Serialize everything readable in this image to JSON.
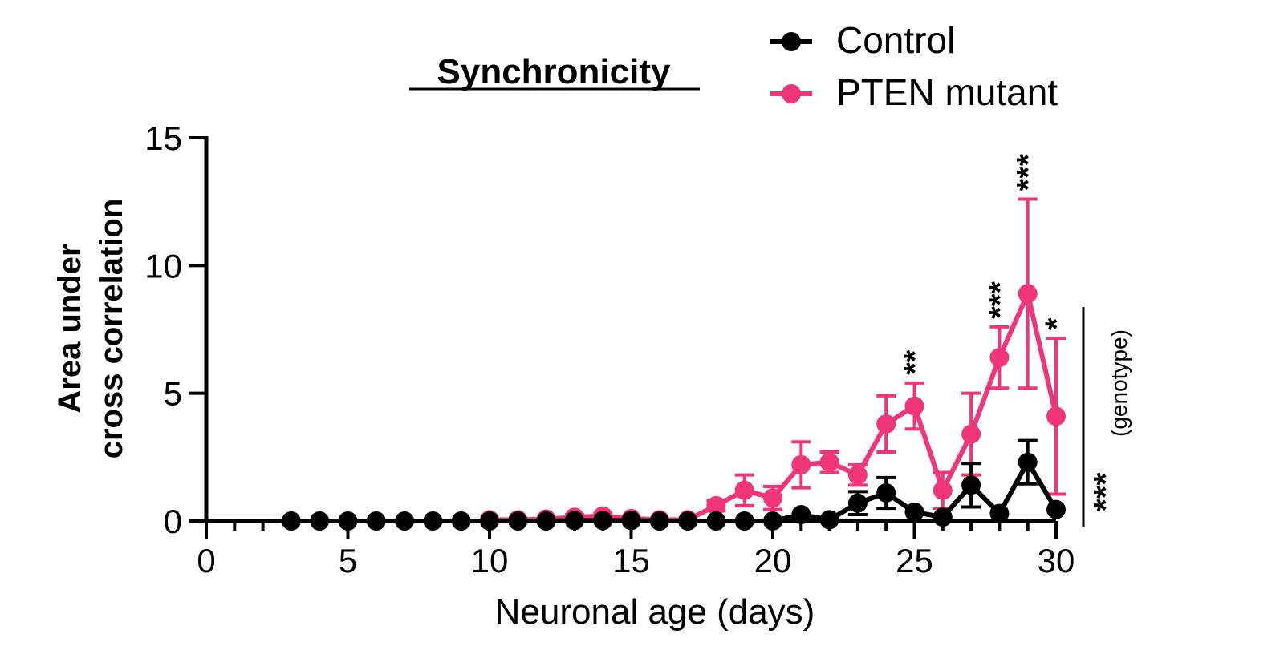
{
  "chart_data": {
    "type": "line",
    "title": "Synchronicity",
    "xlabel": "Neuronal age (days)",
    "ylabel_line1": "Area under",
    "ylabel_line2": "cross correlation",
    "xlim": [
      0,
      30
    ],
    "ylim": [
      0,
      15
    ],
    "xticks": [
      0,
      5,
      10,
      15,
      20,
      25,
      30
    ],
    "yticks": [
      0,
      5,
      10,
      15
    ],
    "grid": false,
    "legend_position": "top-right",
    "colors": {
      "control": "#000000",
      "pten": "#f0357a"
    },
    "series": [
      {
        "name": "Control",
        "color": "#000000",
        "x": [
          3,
          4,
          5,
          6,
          7,
          8,
          9,
          10,
          11,
          12,
          13,
          14,
          15,
          16,
          17,
          18,
          19,
          20,
          21,
          22,
          23,
          24,
          25,
          26,
          27,
          28,
          29,
          30
        ],
        "y": [
          0,
          0,
          0,
          0,
          0,
          0,
          0,
          0,
          0,
          0,
          0.02,
          0.02,
          0.02,
          0,
          0,
          0,
          0,
          0,
          0.25,
          0.05,
          0.7,
          1.1,
          0.35,
          0.15,
          1.4,
          0.3,
          2.3,
          0.45
        ],
        "err": [
          0,
          0,
          0,
          0,
          0,
          0,
          0,
          0,
          0,
          0,
          0,
          0,
          0,
          0,
          0,
          0,
          0,
          0,
          0,
          0,
          0.45,
          0.6,
          0,
          0,
          0.85,
          0,
          0.85,
          0
        ]
      },
      {
        "name": "PTEN mutant",
        "color": "#f0357a",
        "x": [
          10,
          11,
          12,
          13,
          14,
          15,
          16,
          17,
          18,
          19,
          20,
          21,
          22,
          23,
          24,
          25,
          26,
          27,
          28,
          29,
          30
        ],
        "y": [
          0.05,
          0.05,
          0.08,
          0.15,
          0.2,
          0.1,
          0.05,
          0.05,
          0.6,
          1.2,
          0.9,
          2.2,
          2.3,
          1.8,
          3.8,
          4.5,
          1.2,
          3.4,
          6.4,
          8.9,
          4.1
        ],
        "err": [
          0,
          0,
          0,
          0.1,
          0.1,
          0,
          0,
          0,
          0.2,
          0.6,
          0.45,
          0.9,
          0.4,
          0.4,
          1.1,
          0.9,
          0.7,
          1.6,
          1.2,
          3.7,
          3.05
        ]
      }
    ],
    "annotations": [
      {
        "text": "**",
        "x": 25
      },
      {
        "text": "***",
        "x": 28
      },
      {
        "text": "***",
        "x": 29
      },
      {
        "text": "*",
        "x": 30
      }
    ],
    "side_bracket": {
      "stars": "***",
      "label": "(genotype)"
    }
  }
}
